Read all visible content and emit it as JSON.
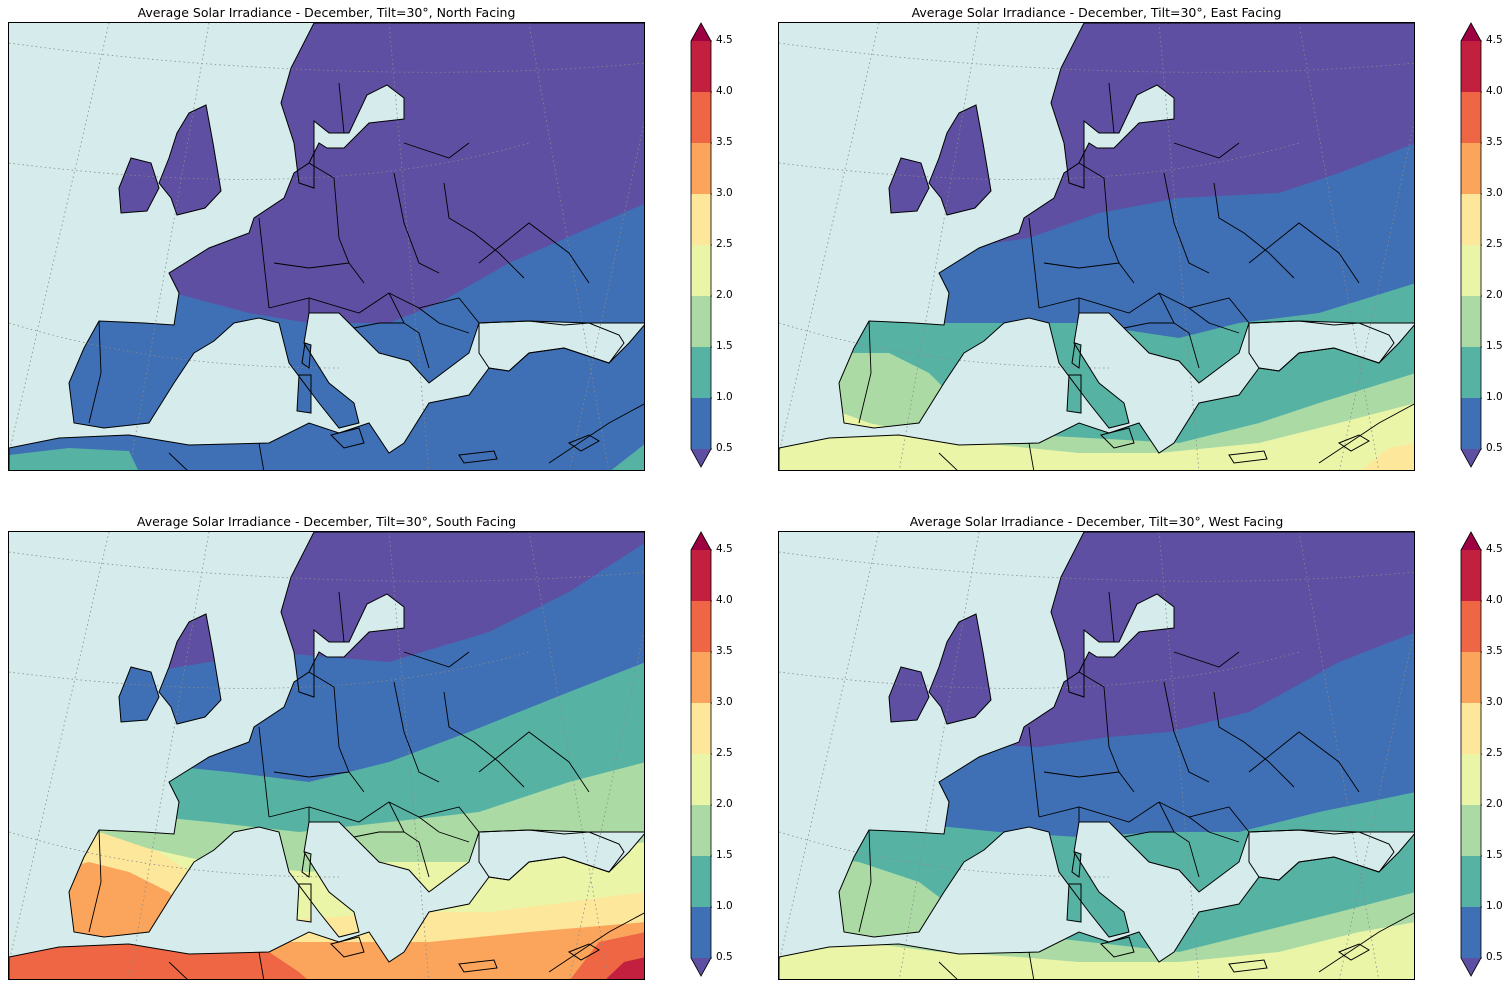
{
  "panels": [
    {
      "title": "Average Solar Irradiance - December, Tilt=30°, North Facing",
      "orientation": "north"
    },
    {
      "title": "Average Solar Irradiance - December, Tilt=30°, East Facing",
      "orientation": "east"
    },
    {
      "title": "Average Solar Irradiance - December, Tilt=30°, South Facing",
      "orientation": "south"
    },
    {
      "title": "Average Solar Irradiance - December, Tilt=30°, West Facing",
      "orientation": "west"
    }
  ],
  "colorbar": {
    "ticks": [
      "0.5",
      "1.0",
      "1.5",
      "2.0",
      "2.5",
      "3.0",
      "3.5",
      "4.0",
      "4.5"
    ],
    "colors": [
      "#3f6fb4",
      "#56b3a3",
      "#abdaa4",
      "#eaf5a8",
      "#fde79a",
      "#fba55c",
      "#ee6644",
      "#c2203e"
    ],
    "under_color": "#5e4fa2",
    "over_color": "#9e0142"
  },
  "colors": {
    "sea": "#d6ecec",
    "purple": "#5e4fa2",
    "blue": "#3f6fb4",
    "teal": "#56b3a3",
    "green": "#abdaa4",
    "yellow": "#eaf5a8",
    "lightorange": "#fde79a",
    "orange": "#fba55c",
    "red": "#ee6644",
    "crimson": "#c2203e"
  }
}
